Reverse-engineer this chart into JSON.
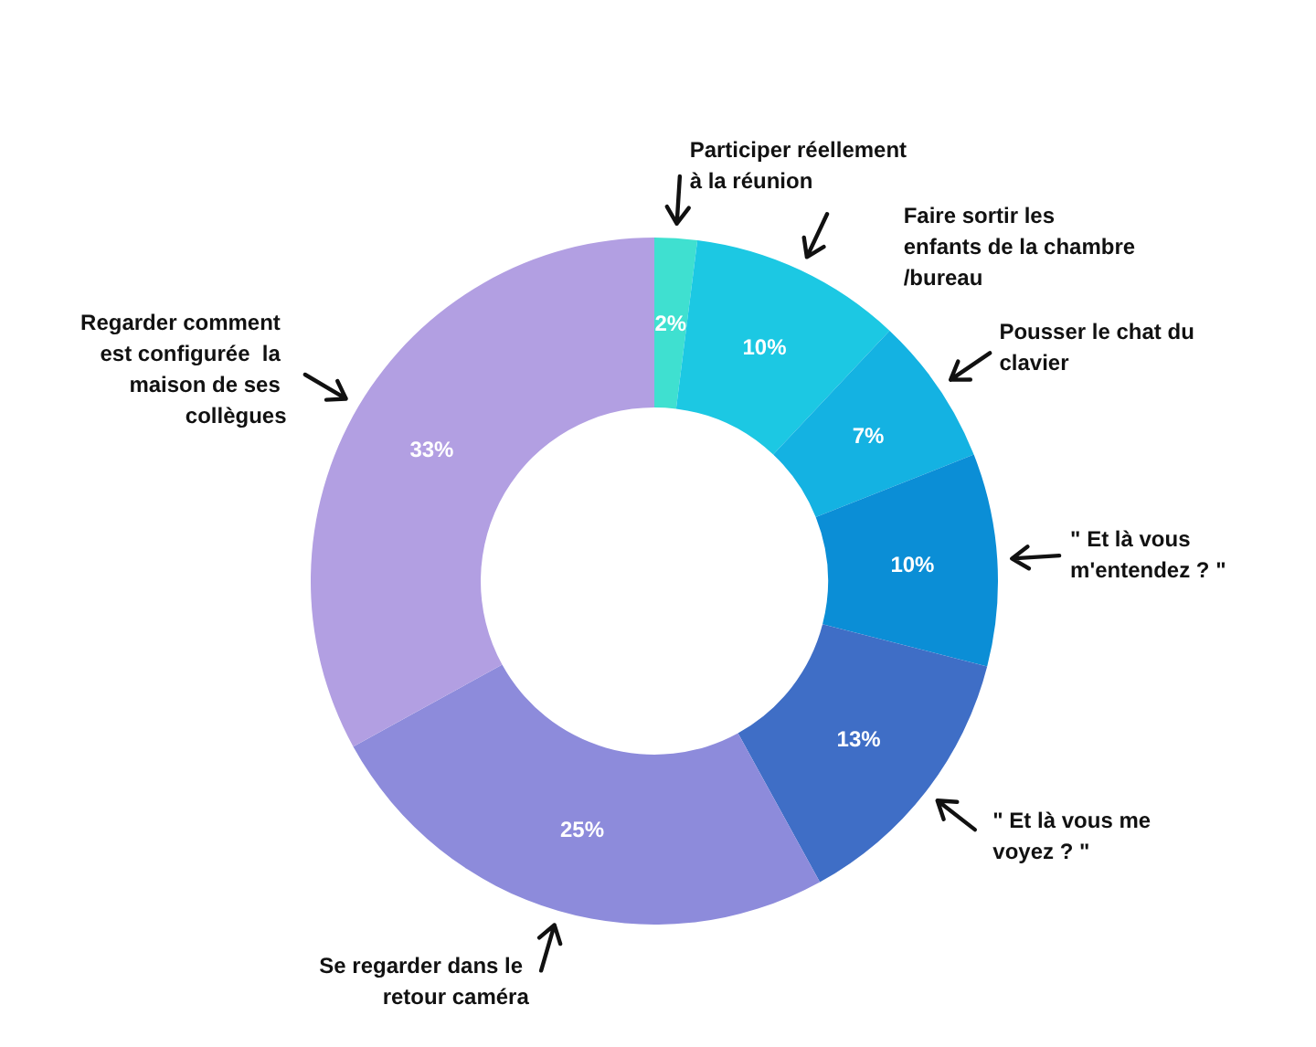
{
  "chart_data": {
    "type": "donut",
    "categories": [
      "Participer réellement à la réunion",
      "Faire sortir les enfants de la chambre/bureau",
      "Pousser le chat du clavier",
      "\" Et là vous m'entendez ? \"",
      "\" Et là vous me voyez ? \"",
      "Se regarder dans le retour caméra",
      "Regarder comment est configurée  la maison de ses collègues"
    ],
    "values": [
      2,
      10,
      7,
      10,
      13,
      25,
      33
    ],
    "colors": [
      "#3fe0d0",
      "#1cc8e3",
      "#14b2e2",
      "#0b8ed6",
      "#3f6ec6",
      "#8d8bdb",
      "#b29fe2"
    ],
    "value_labels": [
      "2%",
      "10%",
      "7%",
      "10%",
      "13%",
      "25%",
      "33%"
    ],
    "legend": false
  }
}
